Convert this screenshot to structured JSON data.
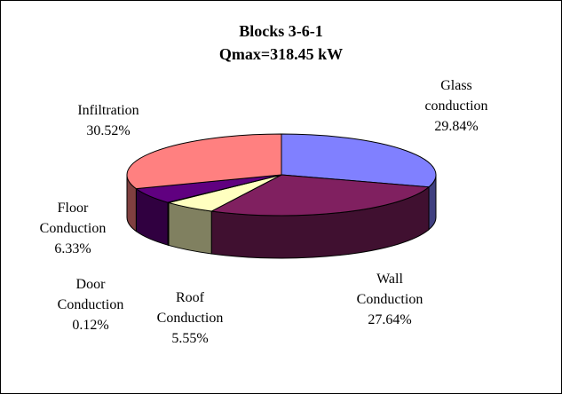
{
  "chart_data": {
    "type": "pie",
    "style": "3d",
    "title": "Blocks 3-6-1",
    "subtitle": "Qmax=318.45 kW",
    "slices": [
      {
        "line1": "Glass",
        "line2": "conduction",
        "pct_label": "29.84%",
        "value": 29.84,
        "color": "#8080ff"
      },
      {
        "line1": "Wall",
        "line2": "Conduction",
        "pct_label": "27.64%",
        "value": 27.64,
        "color": "#802060"
      },
      {
        "line1": "Roof",
        "line2": "Conduction",
        "pct_label": "5.55%",
        "value": 5.55,
        "color": "#ffffc0"
      },
      {
        "line1": "Door",
        "line2": "Conduction",
        "pct_label": "0.12%",
        "value": 0.12,
        "color": "#a0e0e0"
      },
      {
        "line1": "Floor",
        "line2": "Conduction",
        "pct_label": "6.33%",
        "value": 6.33,
        "color": "#600080"
      },
      {
        "line1": "Infiltration",
        "line2": "",
        "pct_label": "30.52%",
        "value": 30.52,
        "color": "#ff8080"
      }
    ]
  }
}
